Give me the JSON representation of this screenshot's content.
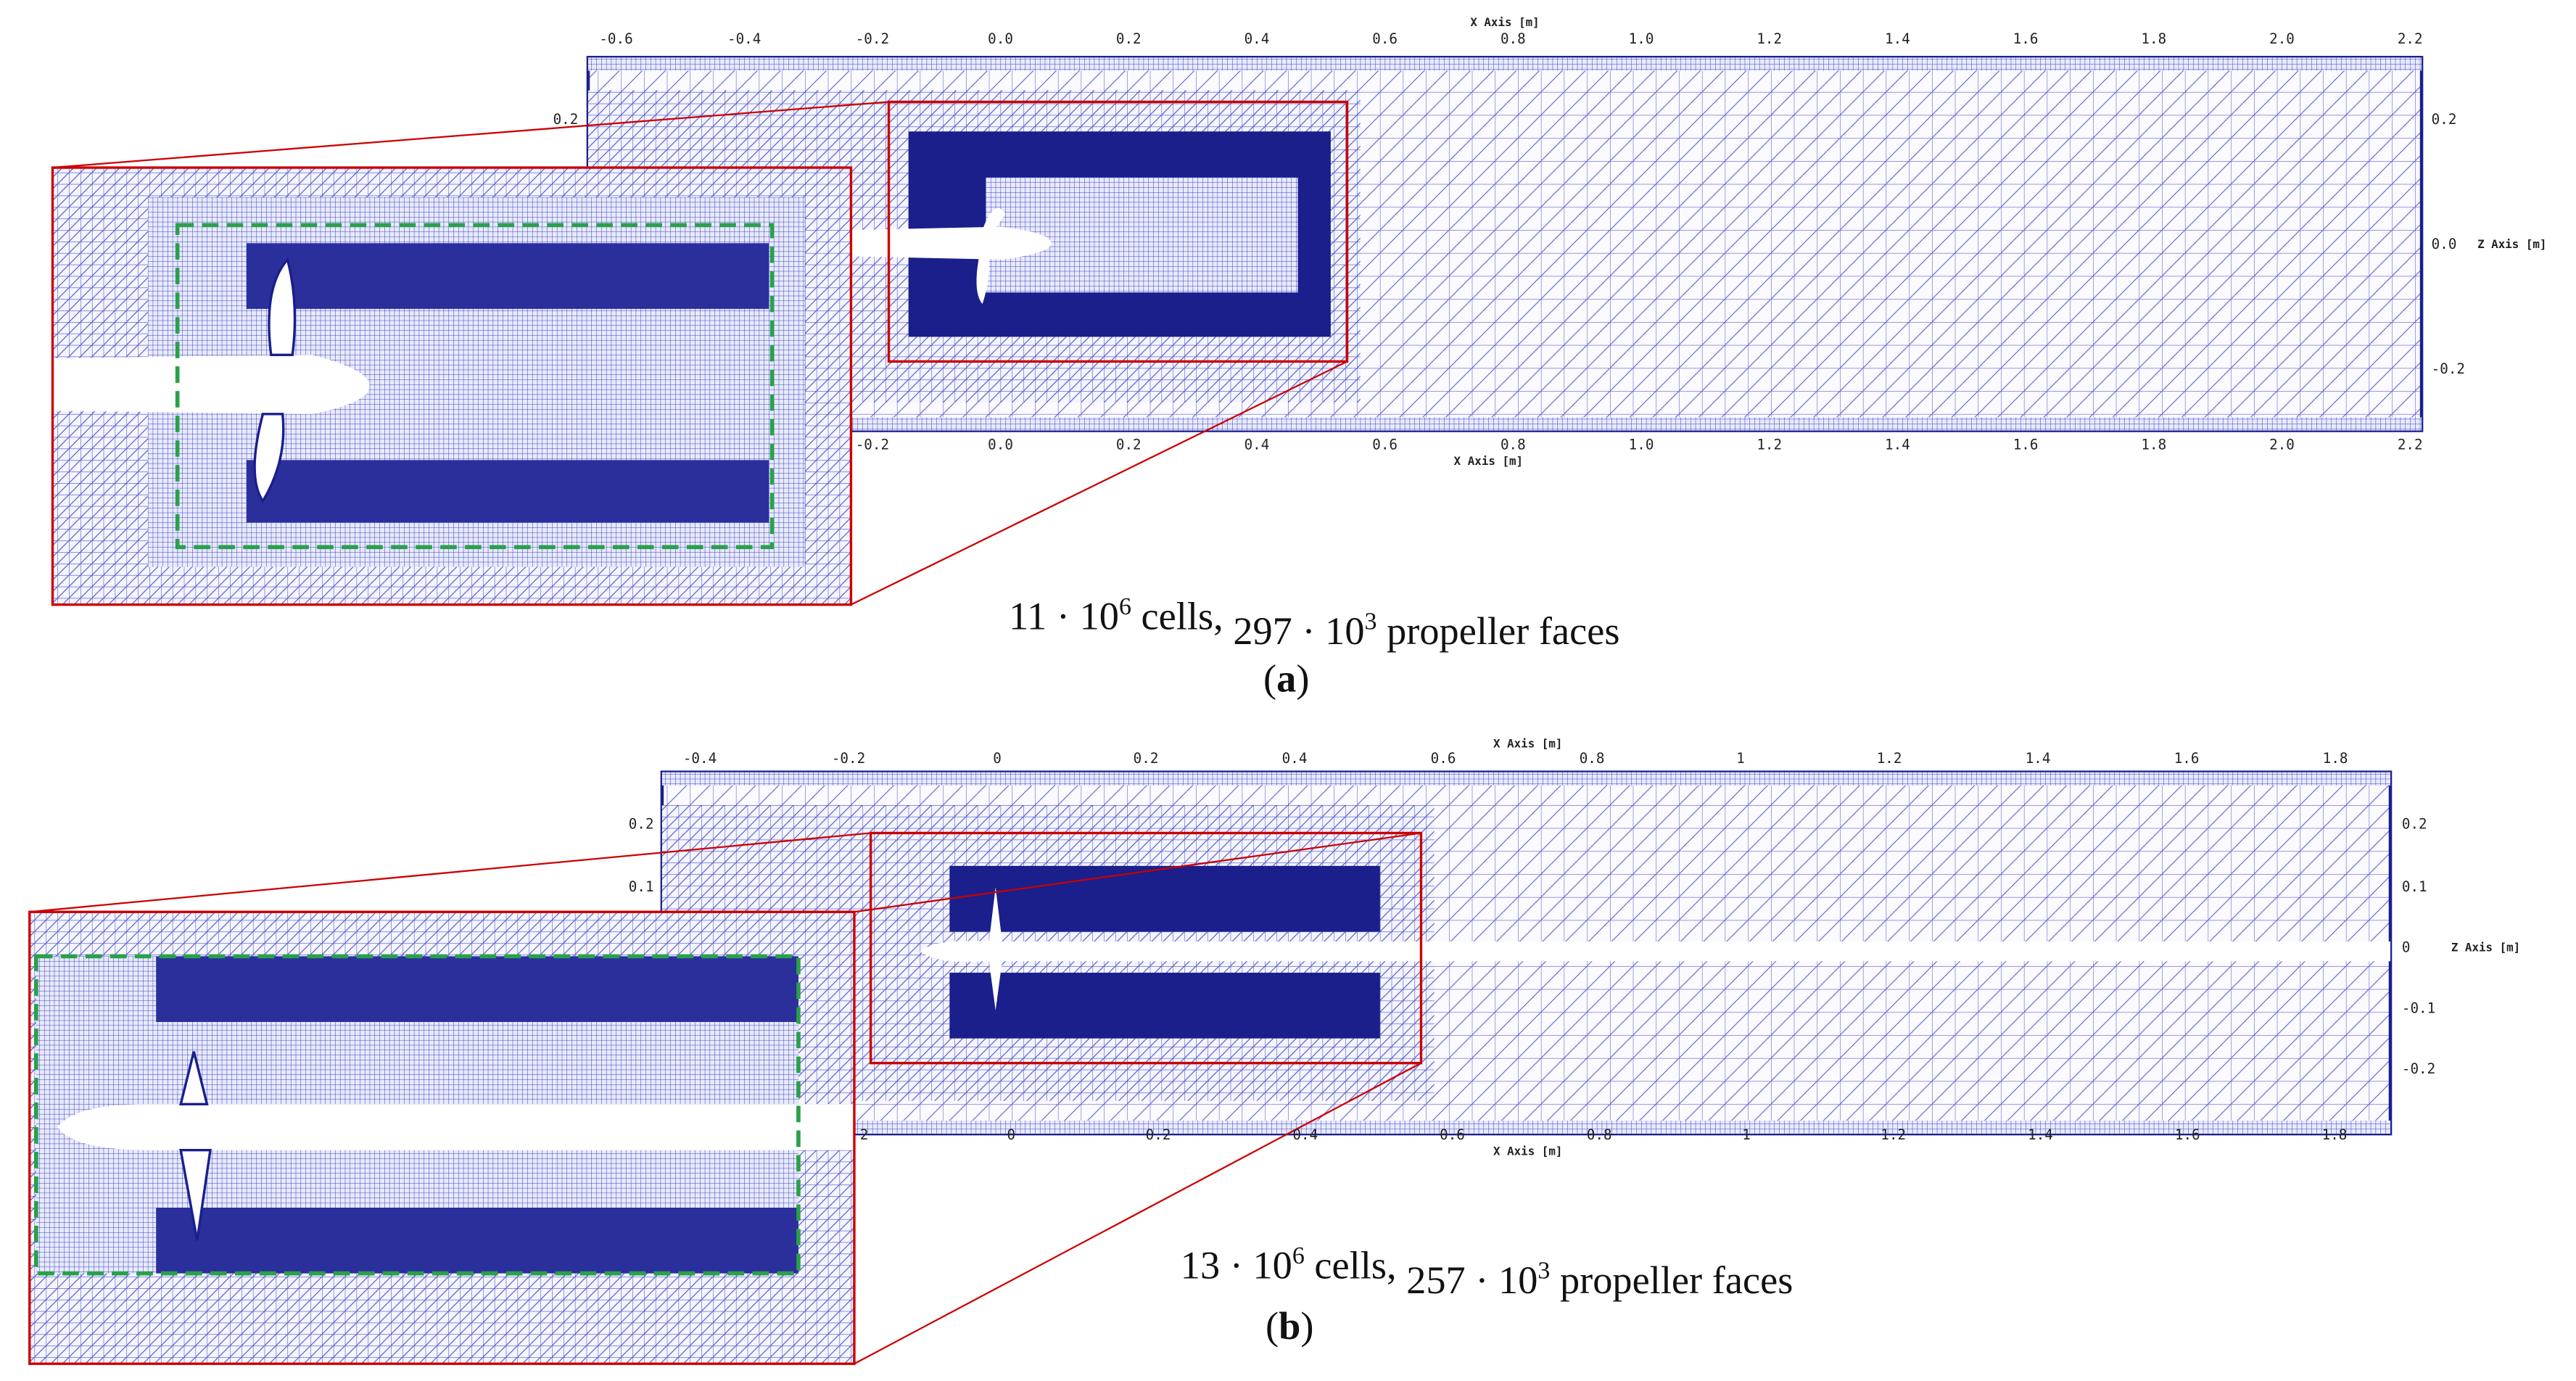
{
  "panels": [
    {
      "x_axis_label": "X Axis [m]",
      "z_axis_label": "Z Axis [m]",
      "top_ticks": [
        "-0.6",
        "-0.4",
        "-0.2",
        "0.0",
        "0.2",
        "0.4",
        "0.6",
        "0.8",
        "1.0",
        "1.2",
        "1.4",
        "1.6",
        "1.8",
        "2.0",
        "2.2"
      ],
      "bottom_ticks": [
        "-0.2",
        "0.0",
        "0.2",
        "0.4",
        "0.6",
        "0.8",
        "1.0",
        "1.2",
        "1.4",
        "1.6",
        "1.8",
        "2.0",
        "2.2"
      ],
      "left_ticks": [
        "0.2"
      ],
      "right_ticks": [
        "0.2",
        "0.0",
        "-0.2"
      ],
      "caption": [
        "11 · 10",
        "6",
        " cells, ",
        "297 · 10",
        "3",
        " propeller faces"
      ],
      "label": [
        "(",
        "a",
        ")"
      ]
    },
    {
      "x_axis_label": "X Axis [m]",
      "z_axis_label": "Z Axis [m]",
      "top_ticks": [
        "-0.4",
        "-0.2",
        "0",
        "0.2",
        "0.4",
        "0.6",
        "0.8",
        "1",
        "1.2",
        "1.4",
        "1.6",
        "1.8"
      ],
      "bottom_ticks": [
        "2",
        "0",
        "0.2",
        "0.4",
        "0.6",
        "0.8",
        "1",
        "1.2",
        "1.4",
        "1.6",
        "1.8"
      ],
      "left_ticks": [
        "0.2",
        "0.1"
      ],
      "right_ticks": [
        "0.2",
        "0.1",
        "0",
        "-0.1",
        "-0.2"
      ],
      "caption": [
        "13 · 10",
        "6",
        " cells, ",
        "257 · 10",
        "3",
        " propeller faces"
      ],
      "label": [
        "(",
        "b",
        ")"
      ]
    }
  ]
}
